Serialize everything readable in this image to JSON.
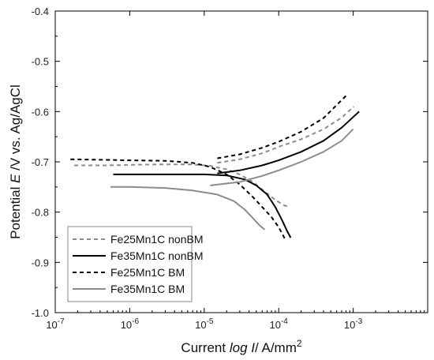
{
  "chart_data": {
    "type": "line",
    "xlabel": {
      "prefix": "Current ",
      "italic": "log I",
      "suffix": "/ A/mm",
      "sup": "2"
    },
    "ylabel": {
      "prefix": "Potential ",
      "italic": "E",
      "suffix": " /V vs. Ag/AgCl"
    },
    "x_scale": "log",
    "xlim": [
      1e-07,
      0.01
    ],
    "x_ticks": [
      1e-07,
      1e-06,
      1e-05,
      0.0001,
      0.001
    ],
    "x_tick_labels": [
      {
        "base": "10",
        "exp": "-7"
      },
      {
        "base": "10",
        "exp": "-6"
      },
      {
        "base": "10",
        "exp": "-5"
      },
      {
        "base": "10",
        "exp": "-4"
      },
      {
        "base": "10",
        "exp": "-3"
      }
    ],
    "ylim": [
      -1.0,
      -0.4
    ],
    "y_ticks": [
      -1.0,
      -0.9,
      -0.8,
      -0.7,
      -0.6,
      -0.5,
      -0.4
    ],
    "y_tick_labels": [
      "-1.0",
      "-0.9",
      "-0.8",
      "-0.7",
      "-0.6",
      "-0.5",
      "-0.4"
    ],
    "grid": false,
    "legend_position": "bottom-left",
    "series": [
      {
        "name": "Fe25Mn1C nonBM",
        "color": "#8c8c8c",
        "dash": "dashed",
        "points": [
          [
            1.8e-07,
            -0.707
          ],
          [
            5e-07,
            -0.707
          ],
          [
            1e-06,
            -0.706
          ],
          [
            3e-06,
            -0.705
          ],
          [
            7e-06,
            -0.705
          ],
          [
            1.2e-05,
            -0.708
          ],
          [
            2e-05,
            -0.715
          ],
          [
            3e-05,
            -0.725
          ],
          [
            4.5e-05,
            -0.74
          ],
          [
            6e-05,
            -0.755
          ],
          [
            8e-05,
            -0.77
          ],
          [
            0.0001,
            -0.78
          ],
          [
            0.00012,
            -0.787
          ],
          [
            0.00013,
            -0.788
          ],
          null,
          [
            1.5e-05,
            -0.702
          ],
          [
            3e-05,
            -0.695
          ],
          [
            6e-05,
            -0.683
          ],
          [
            0.0001,
            -0.67
          ],
          [
            0.0002,
            -0.655
          ],
          [
            0.0004,
            -0.635
          ],
          [
            0.0007,
            -0.612
          ],
          [
            0.00102,
            -0.59
          ]
        ]
      },
      {
        "name": "Fe35Mn1C nonBM",
        "color": "#000000",
        "dash": "solid",
        "points": [
          [
            6e-07,
            -0.725
          ],
          [
            1e-06,
            -0.725
          ],
          [
            3e-06,
            -0.725
          ],
          [
            1e-05,
            -0.725
          ],
          [
            2e-05,
            -0.727
          ],
          [
            3.5e-05,
            -0.735
          ],
          [
            5e-05,
            -0.747
          ],
          [
            7e-05,
            -0.765
          ],
          [
            9e-05,
            -0.79
          ],
          [
            0.00011,
            -0.815
          ],
          [
            0.00013,
            -0.838
          ],
          [
            0.000145,
            -0.851
          ],
          null,
          [
            1.5e-05,
            -0.723
          ],
          [
            3e-05,
            -0.717
          ],
          [
            6e-05,
            -0.707
          ],
          [
            0.0001,
            -0.697
          ],
          [
            0.0002,
            -0.68
          ],
          [
            0.0004,
            -0.658
          ],
          [
            0.0007,
            -0.632
          ],
          [
            0.0012,
            -0.6
          ]
        ]
      },
      {
        "name": "Fe25Mn1C BM",
        "color": "#000000",
        "dash": "dashed",
        "points": [
          [
            1.6e-07,
            -0.695
          ],
          [
            5e-07,
            -0.696
          ],
          [
            1e-06,
            -0.697
          ],
          [
            3e-06,
            -0.698
          ],
          [
            7e-06,
            -0.702
          ],
          [
            1.2e-05,
            -0.71
          ],
          [
            2e-05,
            -0.725
          ],
          [
            3e-05,
            -0.745
          ],
          [
            4.5e-05,
            -0.77
          ],
          [
            6e-05,
            -0.79
          ],
          [
            8e-05,
            -0.81
          ],
          [
            0.0001,
            -0.83
          ],
          [
            0.00012,
            -0.852
          ],
          null,
          [
            1.5e-05,
            -0.693
          ],
          [
            3e-05,
            -0.685
          ],
          [
            6e-05,
            -0.672
          ],
          [
            0.0001,
            -0.66
          ],
          [
            0.0002,
            -0.64
          ],
          [
            0.0004,
            -0.613
          ],
          [
            0.00082,
            -0.567
          ]
        ]
      },
      {
        "name": "Fe35Mn1C BM",
        "color": "#8c8c8c",
        "dash": "solid",
        "points": [
          [
            5.5e-07,
            -0.75
          ],
          [
            1e-06,
            -0.75
          ],
          [
            3e-06,
            -0.752
          ],
          [
            7e-06,
            -0.757
          ],
          [
            1.5e-05,
            -0.765
          ],
          [
            2.5e-05,
            -0.778
          ],
          [
            3.5e-05,
            -0.795
          ],
          [
            4.5e-05,
            -0.812
          ],
          [
            5.5e-05,
            -0.826
          ],
          [
            6.5e-05,
            -0.835
          ],
          null,
          [
            1.2e-05,
            -0.747
          ],
          [
            3e-05,
            -0.74
          ],
          [
            6e-05,
            -0.728
          ],
          [
            0.0001,
            -0.717
          ],
          [
            0.0002,
            -0.7
          ],
          [
            0.0004,
            -0.68
          ],
          [
            0.0007,
            -0.658
          ],
          [
            0.001,
            -0.635
          ]
        ]
      }
    ]
  }
}
